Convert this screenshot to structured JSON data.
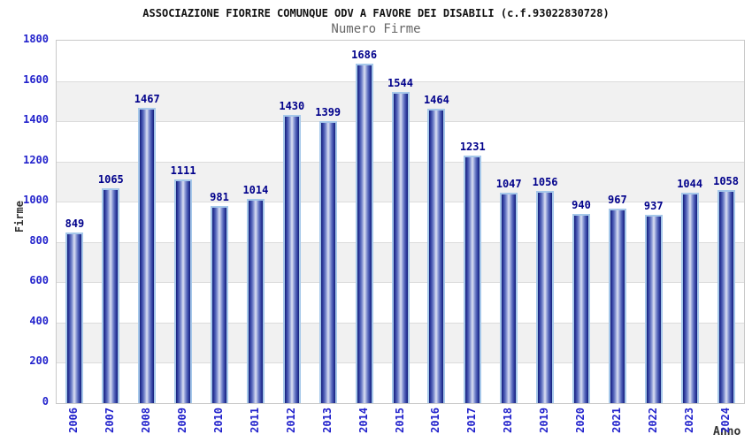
{
  "chart_data": {
    "type": "bar",
    "title": "ASSOCIAZIONE FIORIRE COMUNQUE ODV A FAVORE DEI DISABILI (c.f.93022830728)",
    "subtitle": "Numero Firme",
    "xlabel": "Anno",
    "ylabel": "Firme",
    "categories": [
      "2006",
      "2007",
      "2008",
      "2009",
      "2010",
      "2011",
      "2012",
      "2013",
      "2014",
      "2015",
      "2016",
      "2017",
      "2018",
      "2019",
      "2020",
      "2021",
      "2022",
      "2023",
      "2024"
    ],
    "values": [
      849,
      1065,
      1467,
      1111,
      981,
      1014,
      1430,
      1399,
      1686,
      1544,
      1464,
      1231,
      1047,
      1056,
      940,
      967,
      937,
      1044,
      1058
    ],
    "ylim": [
      0,
      1800
    ],
    "ytick_step": 200,
    "yticks": [
      0,
      200,
      400,
      600,
      800,
      1000,
      1200,
      1400,
      1600,
      1800
    ],
    "grid": "horizontal-bands",
    "legend_position": "none",
    "colors": {
      "bar_dark_edge": "#151f78",
      "bar_mid": "#5b6cbe",
      "bar_light_center": "#dde1f3",
      "bar_outline": "#a6c8ea",
      "value_label": "#00008b",
      "tick_label": "#2222cc",
      "axis_title": "#333333",
      "title_text": "#111111",
      "subtitle_text": "#666666",
      "band": "#f1f1f1",
      "gridline": "#dcdcdc",
      "plot_border": "#c9c9c9",
      "background": "#ffffff"
    }
  }
}
